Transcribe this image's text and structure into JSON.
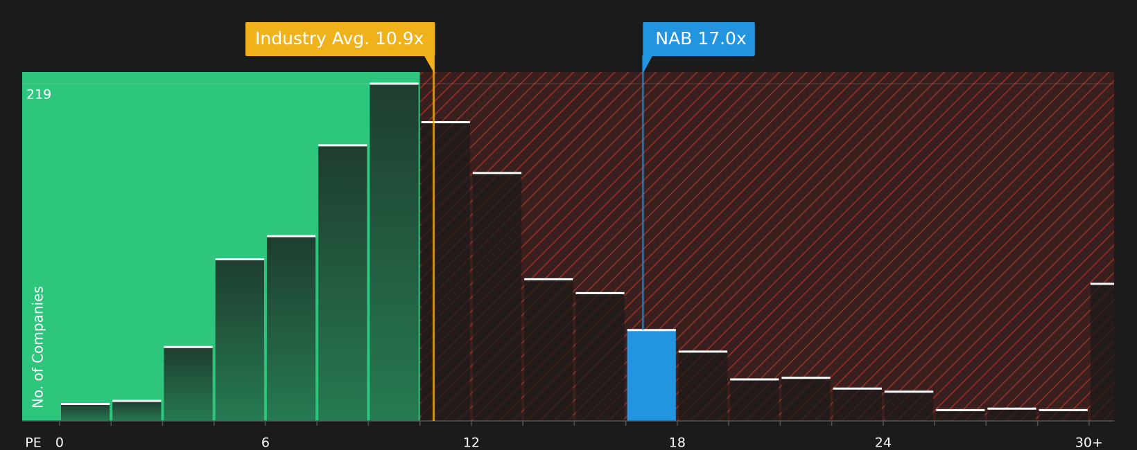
{
  "chart_data": {
    "type": "histogram",
    "bins": [
      0,
      1.5,
      3,
      4.5,
      6,
      7.5,
      9,
      10.5,
      12,
      13.5,
      15,
      16.5,
      18,
      19.5,
      21,
      22.5,
      24,
      25.5,
      27,
      28.5,
      30,
      31.5
    ],
    "values": [
      11,
      13,
      48,
      105,
      120,
      179,
      219,
      194,
      161,
      92,
      83,
      59,
      45,
      27,
      28,
      21,
      19,
      7,
      8,
      7,
      89
    ],
    "xlim": [
      -1.09,
      30.73
    ],
    "ylim": [
      0,
      226.6
    ],
    "xticks": [
      0,
      6,
      12,
      18,
      24,
      {
        "value": 30,
        "label": "30+"
      }
    ],
    "yticks": [
      219
    ],
    "xlabel": "PE",
    "ylabel": "No. of Companies",
    "good_color": "#2ec67c",
    "bad_color": "#c0392b",
    "highlight_color": "#2394e0",
    "annotations": [
      {
        "label": "Industry Avg. 10.9x",
        "value": 10.9,
        "color": "#f0b21b"
      },
      {
        "label": "NAB 17.0x",
        "value": 17.0,
        "color": "#2394e0"
      }
    ]
  }
}
